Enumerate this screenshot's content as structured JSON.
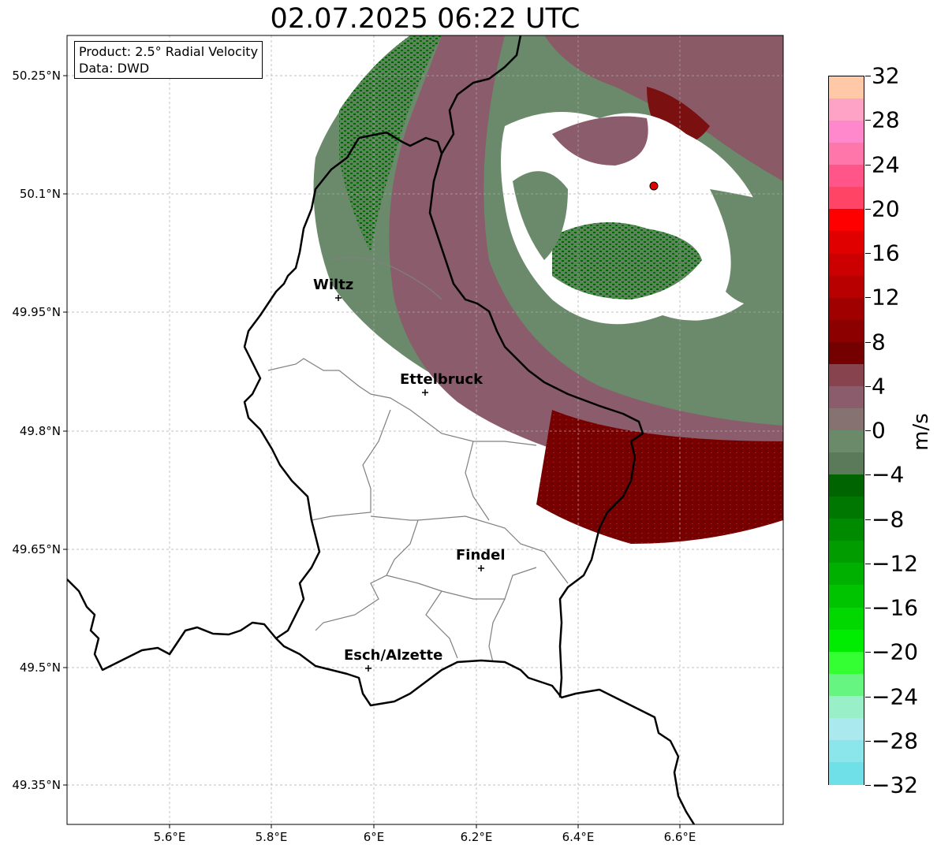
{
  "title": "02.07.2025 06:22 UTC",
  "info": {
    "product": "Product: 2.5° Radial Velocity",
    "source": "Data: DWD"
  },
  "map": {
    "lat_labels": [
      "50.25°N",
      "50.1°N",
      "49.95°N",
      "49.8°N",
      "49.65°N",
      "49.5°N",
      "49.35°N"
    ],
    "lon_labels": [
      "5.6°E",
      "5.8°E",
      "6°E",
      "6.2°E",
      "6.4°E",
      "6.6°E"
    ],
    "grid": true,
    "cities": [
      {
        "name": "Wiltz",
        "lat": 49.967,
        "lon": 5.933
      },
      {
        "name": "Ettelbruck",
        "lat": 49.847,
        "lon": 6.1
      },
      {
        "name": "Findel",
        "lat": 49.627,
        "lon": 6.21
      },
      {
        "name": "Esch/Alzette",
        "lat": 49.5,
        "lon": 5.99
      }
    ],
    "radar_site": {
      "lat": 50.11,
      "lon": 6.548
    },
    "velocity_field": [
      {
        "region": "north-west arc",
        "value_ms": -6,
        "color": "#006400"
      },
      {
        "region": "west arc",
        "value_ms": -2,
        "color": "#6b8e6b"
      },
      {
        "region": "central-south arc",
        "value_ms": 3,
        "color": "#8b5a6b"
      },
      {
        "region": "south-east core",
        "value_ms": 8,
        "color": "#7a0000"
      },
      {
        "region": "north-east",
        "value_ms": 4,
        "color": "#8b4a55"
      },
      {
        "region": "near radar",
        "value_ms": -6,
        "color": "#006400"
      }
    ]
  },
  "colorbar": {
    "unit": "m/s",
    "ticks": [
      "32",
      "28",
      "24",
      "20",
      "16",
      "12",
      "8",
      "4",
      "0",
      "−4",
      "−8",
      "−12",
      "−16",
      "−20",
      "−24",
      "−28",
      "−32"
    ],
    "colors": [
      "#ffc8a6",
      "#ffa3c6",
      "#ff88cc",
      "#ff77aa",
      "#ff5588",
      "#ff4466",
      "#ff0000",
      "#e00000",
      "#cc0000",
      "#b80000",
      "#a00000",
      "#8c0000",
      "#750000",
      "#88444e",
      "#8a5c6c",
      "#877272",
      "#6a8a6a",
      "#5a7a5a",
      "#006400",
      "#007700",
      "#008a00",
      "#009c00",
      "#00b000",
      "#00c400",
      "#00d800",
      "#00ec00",
      "#33ff33",
      "#66f580",
      "#99f0c8",
      "#aaeaee",
      "#8ae6ea",
      "#70e0e8"
    ]
  }
}
